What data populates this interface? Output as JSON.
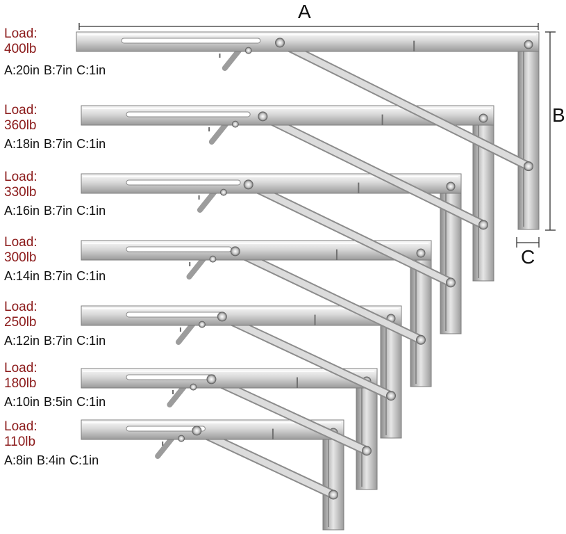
{
  "dimension_labels": {
    "a": "A",
    "b": "B",
    "c": "C"
  },
  "load_label": "Load:",
  "brackets": [
    {
      "load": "400lb",
      "a": "A:20in",
      "b": "B:7in",
      "c": "C:1in"
    },
    {
      "load": "360lb",
      "a": "A:18in",
      "b": "B:7in",
      "c": "C:1in"
    },
    {
      "load": "330lb",
      "a": "A:16in",
      "b": "B:7in",
      "c": "C:1in"
    },
    {
      "load": "300lb",
      "a": "A:14in",
      "b": "B:7in",
      "c": "C:1in"
    },
    {
      "load": "250lb",
      "a": "A:12in",
      "b": "B:7in",
      "c": "C:1in"
    },
    {
      "load": "180lb",
      "a": "A:10in",
      "b": "B:5in",
      "c": "C:1in"
    },
    {
      "load": "110lb",
      "a": "A:8in",
      "b": "B:4in",
      "c": "C:1in"
    }
  ],
  "colors": {
    "load_text": "#8b1a1a",
    "dim_text": "#111111",
    "steel_light": "#f4f4f4",
    "steel_mid": "#c9c9c9",
    "steel_dark": "#8a8a8a",
    "dimension_line": "#333333"
  }
}
